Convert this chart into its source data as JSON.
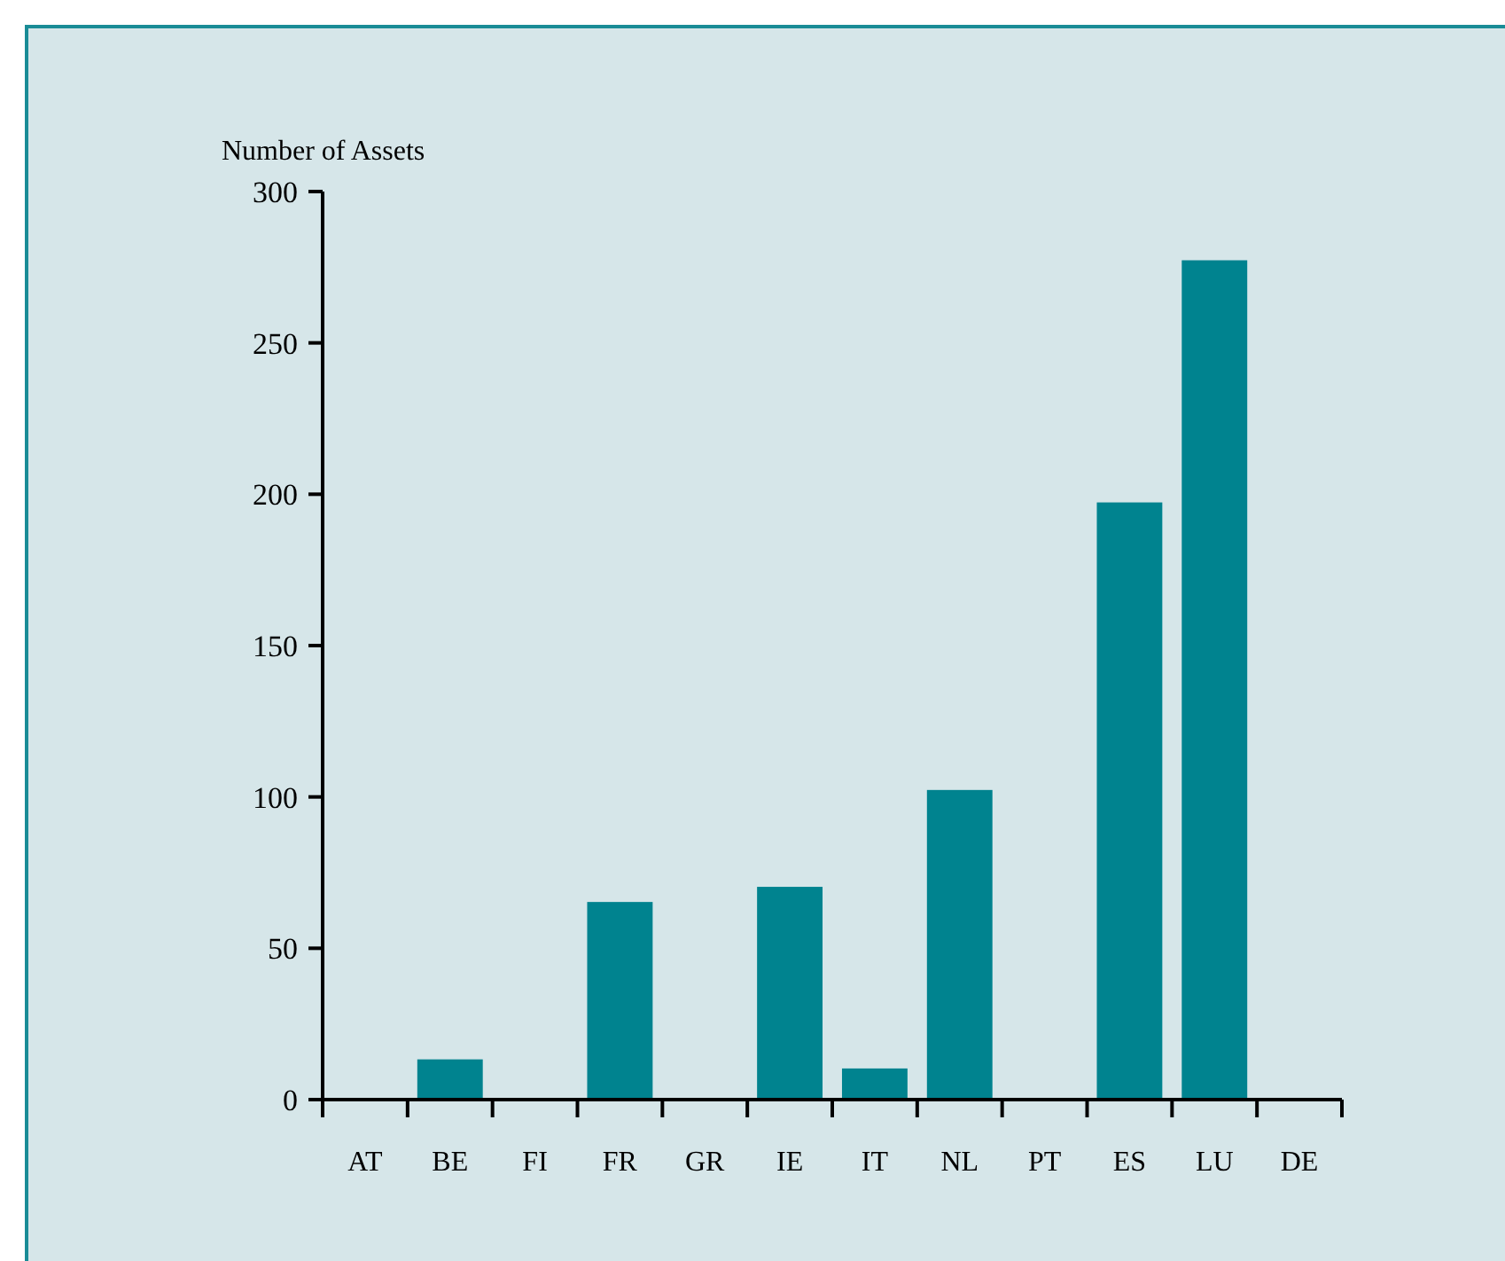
{
  "chart_data": {
    "type": "bar",
    "ylabel": "Number of Assets",
    "categories": [
      "AT",
      "BE",
      "FI",
      "FR",
      "GR",
      "IE",
      "IT",
      "NL",
      "PT",
      "ES",
      "LU",
      "DE"
    ],
    "values": [
      0,
      13,
      0,
      65,
      0,
      70,
      10,
      102,
      0,
      197,
      277,
      0
    ],
    "color": "#00838f",
    "ylim": [
      0,
      300
    ],
    "yticks": [
      0,
      50,
      100,
      150,
      200,
      250,
      300
    ],
    "grid": false
  }
}
